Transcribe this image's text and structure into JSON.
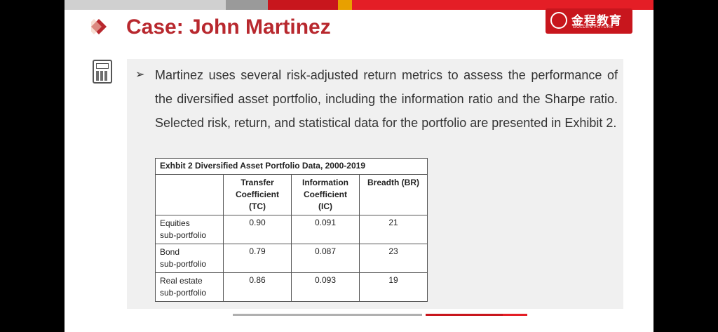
{
  "slide": {
    "title": "Case: John Martinez",
    "logo": {
      "cn": "金程教育",
      "en": "GOLDEN FUTURE"
    },
    "bullet_icon": "calculator-icon",
    "bullet_marker": "➢",
    "paragraph": "Martinez uses several risk-adjusted return metrics to assess the performance of the diversified asset portfolio, including the information ratio and the Sharpe ratio. Selected risk, return, and statistical data for the portfolio are presented in Exhibit 2."
  },
  "exhibit": {
    "caption": "Exhbit 2 Diversified Asset Portfolio Data, 2000-2019",
    "headers": [
      "Transfer Coefficient (TC)",
      "Information Coefficient (IC)",
      "Breadth (BR)"
    ],
    "rows": [
      {
        "label_line1": "Equities",
        "label_line2": "sub-portfolio",
        "tc": "0.90",
        "ic": "0.091",
        "br": "21"
      },
      {
        "label_line1": "Bond",
        "label_line2": "sub-portfolio",
        "tc": "0.79",
        "ic": "0.087",
        "br": "23"
      },
      {
        "label_line1": "Real estate",
        "label_line2": "sub-portfolio",
        "tc": "0.86",
        "ic": "0.093",
        "br": "19"
      }
    ]
  },
  "colors": {
    "brand_red": "#c8161d",
    "title_red": "#b8282e",
    "panel_gray": "#f0f0f0"
  }
}
